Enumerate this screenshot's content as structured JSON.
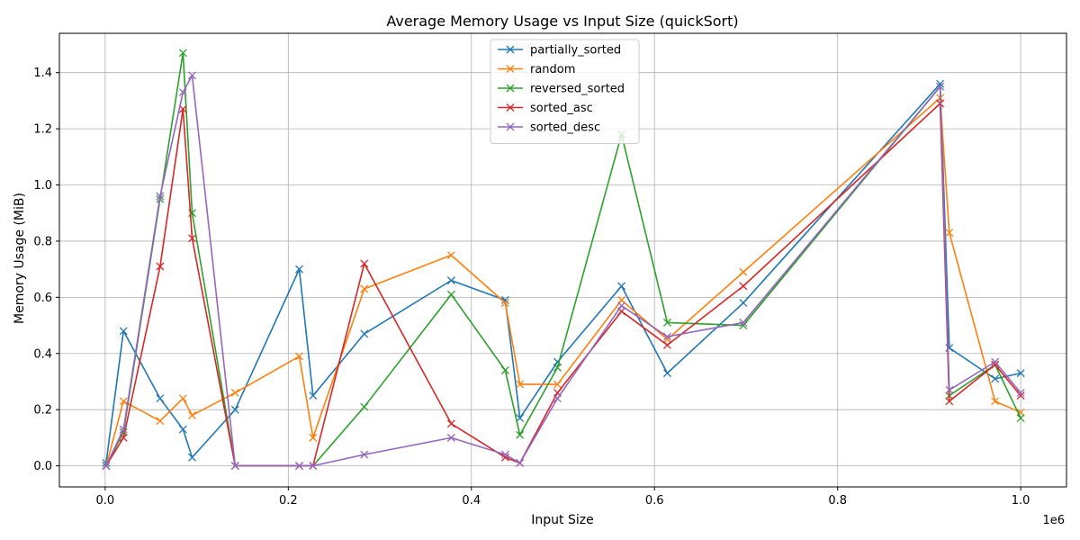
{
  "chart_data": {
    "type": "line",
    "title": "Average Memory Usage vs Input Size (quickSort)",
    "xlabel": "Input Size",
    "ylabel": "Memory Usage (MiB)",
    "x_offset_label": "1e6",
    "xlim": [
      -50000,
      1050000
    ],
    "ylim": [
      -0.075,
      1.54
    ],
    "x_ticks": [
      0,
      200000,
      400000,
      600000,
      800000,
      1000000
    ],
    "x_tick_labels": [
      "0.0",
      "0.2",
      "0.4",
      "0.6",
      "0.8",
      "1.0"
    ],
    "y_ticks": [
      0.0,
      0.2,
      0.4,
      0.6,
      0.8,
      1.0,
      1.2,
      1.4
    ],
    "y_tick_labels": [
      "0.0",
      "0.2",
      "0.4",
      "0.6",
      "0.8",
      "1.0",
      "1.2",
      "1.4"
    ],
    "grid": true,
    "legend_position": "top-center",
    "marker": "x",
    "x": [
      1000,
      20000,
      60000,
      85000,
      95000,
      142000,
      212000,
      227000,
      283000,
      378000,
      437000,
      453000,
      494000,
      564000,
      614000,
      697000,
      912000,
      922000,
      972000,
      1000000
    ],
    "series": [
      {
        "name": "partially_sorted",
        "color": "#1f77b4",
        "values": [
          0.01,
          0.48,
          0.24,
          0.13,
          0.03,
          0.2,
          0.7,
          0.25,
          0.47,
          0.66,
          0.59,
          0.17,
          0.37,
          0.64,
          0.33,
          0.58,
          1.36,
          0.42,
          0.31,
          0.33
        ]
      },
      {
        "name": "random",
        "color": "#ff7f0e",
        "values": [
          0.0,
          0.23,
          0.16,
          0.24,
          0.18,
          0.26,
          0.39,
          0.1,
          0.63,
          0.75,
          0.58,
          0.29,
          0.29,
          0.59,
          0.45,
          0.69,
          1.31,
          0.83,
          0.23,
          0.19
        ]
      },
      {
        "name": "reversed_sorted",
        "color": "#2ca02c",
        "values": [
          0.0,
          0.12,
          0.95,
          1.47,
          0.9,
          0.0,
          0.0,
          0.0,
          0.21,
          0.61,
          0.34,
          0.11,
          0.35,
          1.18,
          0.51,
          0.5,
          1.35,
          0.25,
          0.36,
          0.17
        ]
      },
      {
        "name": "sorted_asc",
        "color": "#d62728",
        "values": [
          0.0,
          0.1,
          0.71,
          1.27,
          0.81,
          0.0,
          0.0,
          0.0,
          0.72,
          0.15,
          0.03,
          0.01,
          0.26,
          0.55,
          0.43,
          0.64,
          1.29,
          0.23,
          0.36,
          0.25
        ]
      },
      {
        "name": "sorted_desc",
        "color": "#9467bd",
        "values": [
          0.0,
          0.13,
          0.96,
          1.33,
          1.39,
          0.0,
          0.0,
          0.0,
          0.04,
          0.1,
          0.04,
          0.01,
          0.24,
          0.57,
          0.46,
          0.51,
          1.35,
          0.27,
          0.37,
          0.26
        ]
      }
    ]
  }
}
